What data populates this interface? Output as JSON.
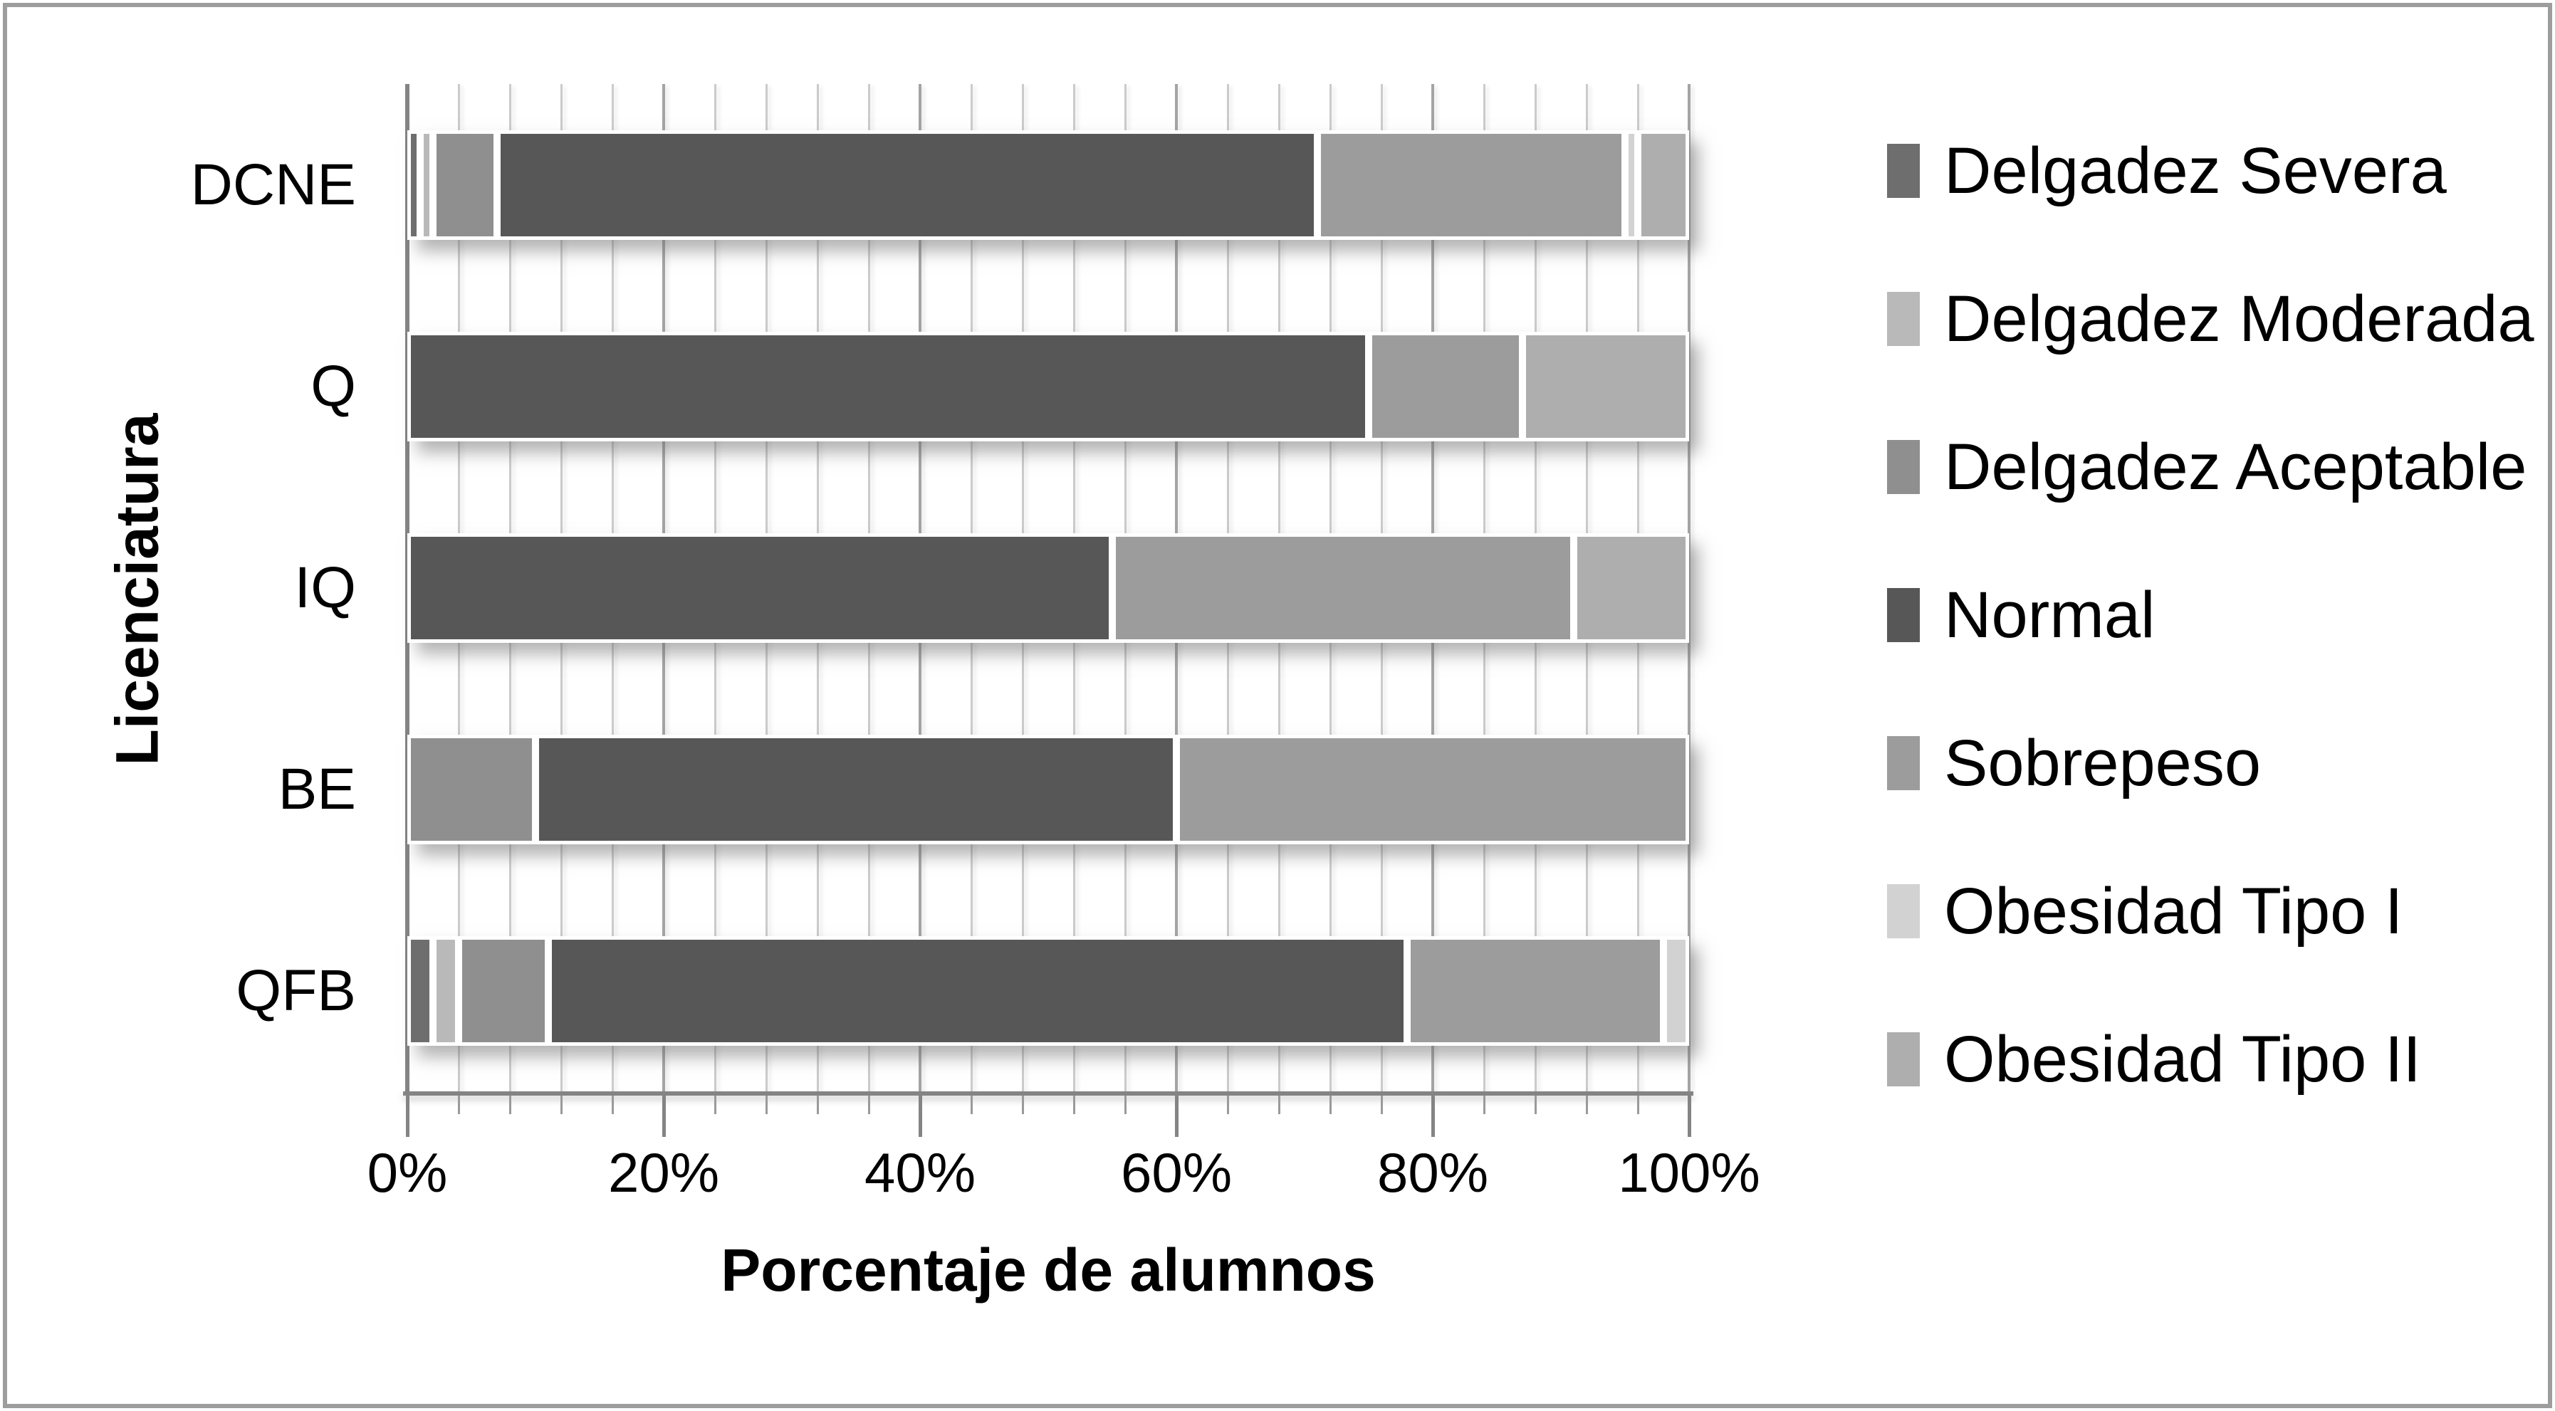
{
  "chart_data": {
    "type": "bar",
    "orientation": "horizontal",
    "stacked_percent": true,
    "title": "",
    "xlabel": "Porcentaje de alumnos",
    "ylabel": "Licenciatura",
    "categories": [
      "DCNE",
      "Q",
      "IQ",
      "BE",
      "QFB"
    ],
    "series": [
      {
        "name": "Delgadez Severa",
        "color": "#6e6e6e",
        "values": [
          1,
          0,
          0,
          0,
          2
        ]
      },
      {
        "name": "Delgadez Moderada",
        "color": "#b9b9b9",
        "values": [
          1,
          0,
          0,
          0,
          2
        ]
      },
      {
        "name": "Delgadez Aceptable",
        "color": "#8f8f8f",
        "values": [
          5,
          0,
          0,
          10,
          7
        ]
      },
      {
        "name": "Normal",
        "color": "#575757",
        "values": [
          64,
          75,
          55,
          50,
          67
        ]
      },
      {
        "name": "Sobrepeso",
        "color": "#9c9c9c",
        "values": [
          24,
          12,
          36,
          40,
          20
        ]
      },
      {
        "name": "Obesidad Tipo I",
        "color": "#d2d2d2",
        "values": [
          1,
          0,
          0,
          0,
          2
        ]
      },
      {
        "name": "Obesidad Tipo II",
        "color": "#aeaeae",
        "values": [
          4,
          13,
          9,
          0,
          0
        ]
      }
    ],
    "xlim": [
      0,
      100
    ],
    "x_major_ticks": [
      "0%",
      "20%",
      "40%",
      "60%",
      "80%",
      "100%"
    ],
    "x_major_step_pct": 20,
    "x_minor_step_pct": 4,
    "grid": true,
    "legend_position": "right",
    "style": {
      "grid_minor_color": "#cbcbcb",
      "grid_major_color": "#a4a4a4",
      "axis_color": "#848484",
      "segment_border_color": "#ffffff",
      "background": "#ffffff",
      "outer_border_color": "#9d9d9d"
    }
  }
}
